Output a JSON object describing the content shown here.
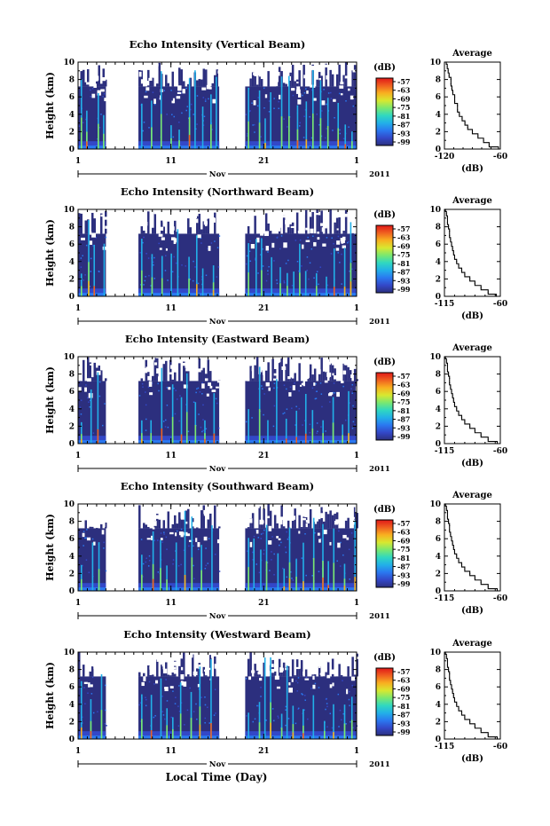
{
  "figure": {
    "time_axis_label": "Local Time (Day)",
    "month_label": "Nov",
    "year_label": "2011"
  },
  "colormap": {
    "colors": [
      "#2c2f7e",
      "#3348c8",
      "#2a78f0",
      "#22b0e8",
      "#30d8c0",
      "#7ae870",
      "#d8e830",
      "#f8b020",
      "#f06020",
      "#e01818"
    ]
  },
  "chart_data": [
    {
      "type": "heatmap",
      "title": "Echo Intensity (Vertical Beam)",
      "ylabel": "Height (km)",
      "y_ticks": [
        "0",
        "2",
        "4",
        "6",
        "8",
        "10"
      ],
      "ylim": [
        0,
        10
      ],
      "x_ticks": [
        "1",
        "11",
        "21",
        "1"
      ],
      "xlim": [
        1,
        31
      ],
      "month": "Nov",
      "year": "2011",
      "colorbar": {
        "unit": "(dB)",
        "ticks": [
          "-57",
          "-63",
          "-69",
          "-75",
          "-81",
          "-87",
          "-93",
          "-99"
        ]
      },
      "data_gaps_days": [
        [
          4.0,
          7.5
        ],
        [
          16.2,
          19.0
        ]
      ],
      "profile": {
        "title": "Average",
        "xlabel": "(dB)",
        "x_ticks": [
          "-120",
          "-60"
        ],
        "xlim": [
          -120,
          -60
        ],
        "y_ticks": [
          "0",
          "2",
          "4",
          "6",
          "8",
          "10"
        ],
        "ylim": [
          0,
          10
        ],
        "height_km": [
          0.0,
          0.5,
          1.0,
          1.5,
          2.0,
          2.5,
          3.0,
          3.5,
          4.0,
          4.5,
          5.0,
          5.5,
          6.0,
          6.5,
          7.0,
          7.5,
          8.0,
          8.5,
          9.0,
          9.5,
          10.0
        ],
        "db": [
          -62,
          -72,
          -78,
          -84,
          -90,
          -95,
          -98,
          -101,
          -104,
          -106,
          -106,
          -109,
          -109,
          -111,
          -112,
          -113,
          -113,
          -115,
          -116,
          -117,
          -118
        ]
      }
    },
    {
      "type": "heatmap",
      "title": "Echo Intensity (Northward Beam)",
      "ylabel": "Height (km)",
      "y_ticks": [
        "0",
        "2",
        "4",
        "6",
        "8",
        "10"
      ],
      "ylim": [
        0,
        10
      ],
      "x_ticks": [
        "1",
        "11",
        "21",
        "1"
      ],
      "xlim": [
        1,
        31
      ],
      "month": "Nov",
      "year": "2011",
      "colorbar": {
        "unit": "(dB)",
        "ticks": [
          "-57",
          "-63",
          "-69",
          "-75",
          "-81",
          "-87",
          "-93",
          "-99"
        ]
      },
      "data_gaps_days": [
        [
          4.0,
          7.5
        ],
        [
          16.2,
          19.0
        ]
      ],
      "profile": {
        "title": "Average",
        "xlabel": "(dB)",
        "x_ticks": [
          "-115",
          "-60"
        ],
        "xlim": [
          -115,
          -60
        ],
        "y_ticks": [
          "0",
          "2",
          "4",
          "6",
          "8",
          "10"
        ],
        "ylim": [
          0,
          10
        ],
        "height_km": [
          0.0,
          0.5,
          1.0,
          1.5,
          2.0,
          2.5,
          3.0,
          3.5,
          4.0,
          4.5,
          5.0,
          5.5,
          6.0,
          6.5,
          7.0,
          7.5,
          8.0,
          8.5,
          9.0,
          9.5,
          10.0
        ],
        "db": [
          -64,
          -72,
          -79,
          -85,
          -90,
          -95,
          -98,
          -101,
          -103,
          -105,
          -106,
          -107,
          -108,
          -109,
          -110,
          -110,
          -111,
          -112,
          -112,
          -113,
          -114
        ]
      }
    },
    {
      "type": "heatmap",
      "title": "Echo Intensity (Eastward Beam)",
      "ylabel": "Height (km)",
      "y_ticks": [
        "0",
        "2",
        "4",
        "6",
        "8",
        "10"
      ],
      "ylim": [
        0,
        10
      ],
      "x_ticks": [
        "1",
        "11",
        "21",
        "1"
      ],
      "xlim": [
        1,
        31
      ],
      "month": "Nov",
      "year": "2011",
      "colorbar": {
        "unit": "(dB)",
        "ticks": [
          "-57",
          "-63",
          "-69",
          "-75",
          "-81",
          "-87",
          "-93",
          "-99"
        ]
      },
      "data_gaps_days": [
        [
          4.0,
          7.5
        ],
        [
          16.2,
          19.0
        ]
      ],
      "profile": {
        "title": "Average",
        "xlabel": "(dB)",
        "x_ticks": [
          "-115",
          "-60"
        ],
        "xlim": [
          -115,
          -60
        ],
        "y_ticks": [
          "0",
          "2",
          "4",
          "6",
          "8",
          "10"
        ],
        "ylim": [
          0,
          10
        ],
        "height_km": [
          0.0,
          0.5,
          1.0,
          1.5,
          2.0,
          2.5,
          3.0,
          3.5,
          4.0,
          4.5,
          5.0,
          5.5,
          6.0,
          6.5,
          7.0,
          7.5,
          8.0,
          8.5,
          9.0,
          9.5,
          10.0
        ],
        "db": [
          -63,
          -72,
          -79,
          -85,
          -90,
          -95,
          -98,
          -101,
          -103,
          -105,
          -106,
          -107,
          -108,
          -109,
          -110,
          -110,
          -111,
          -112,
          -112,
          -113,
          -114
        ]
      }
    },
    {
      "type": "heatmap",
      "title": "Echo Intensity (Southward Beam)",
      "ylabel": "Height (km)",
      "y_ticks": [
        "0",
        "2",
        "4",
        "6",
        "8",
        "10"
      ],
      "ylim": [
        0,
        10
      ],
      "x_ticks": [
        "1",
        "11",
        "21",
        "1"
      ],
      "xlim": [
        1,
        31
      ],
      "month": "Nov",
      "year": "2011",
      "colorbar": {
        "unit": "(dB)",
        "ticks": [
          "-57",
          "-63",
          "-69",
          "-75",
          "-81",
          "-87",
          "-93",
          "-99"
        ]
      },
      "data_gaps_days": [
        [
          4.0,
          7.5
        ],
        [
          16.2,
          19.0
        ]
      ],
      "profile": {
        "title": "Average",
        "xlabel": "(dB)",
        "x_ticks": [
          "-115",
          "-60"
        ],
        "xlim": [
          -115,
          -60
        ],
        "y_ticks": [
          "0",
          "2",
          "4",
          "6",
          "8",
          "10"
        ],
        "ylim": [
          0,
          10
        ],
        "height_km": [
          0.0,
          0.5,
          1.0,
          1.5,
          2.0,
          2.5,
          3.0,
          3.5,
          4.0,
          4.5,
          5.0,
          5.5,
          6.0,
          6.5,
          7.0,
          7.5,
          8.0,
          8.5,
          9.0,
          9.5,
          10.0
        ],
        "db": [
          -63,
          -72,
          -79,
          -85,
          -90,
          -95,
          -98,
          -101,
          -103,
          -105,
          -106,
          -107,
          -108,
          -109,
          -110,
          -110,
          -111,
          -112,
          -112,
          -113,
          -114
        ]
      }
    },
    {
      "type": "heatmap",
      "title": "Echo Intensity (Westward Beam)",
      "ylabel": "Height (km)",
      "y_ticks": [
        "0",
        "2",
        "4",
        "6",
        "8",
        "10"
      ],
      "ylim": [
        0,
        10
      ],
      "x_ticks": [
        "1",
        "11",
        "21",
        "1"
      ],
      "xlim": [
        1,
        31
      ],
      "month": "Nov",
      "year": "2011",
      "colorbar": {
        "unit": "(dB)",
        "ticks": [
          "-57",
          "-63",
          "-69",
          "-75",
          "-81",
          "-87",
          "-93",
          "-99"
        ]
      },
      "data_gaps_days": [
        [
          4.0,
          7.5
        ],
        [
          16.2,
          19.0
        ]
      ],
      "profile": {
        "title": "Average",
        "xlabel": "(dB)",
        "x_ticks": [
          "-115",
          "-60"
        ],
        "xlim": [
          -115,
          -60
        ],
        "y_ticks": [
          "0",
          "2",
          "4",
          "6",
          "8",
          "10"
        ],
        "ylim": [
          0,
          10
        ],
        "height_km": [
          0.0,
          0.5,
          1.0,
          1.5,
          2.0,
          2.5,
          3.0,
          3.5,
          4.0,
          4.5,
          5.0,
          5.5,
          6.0,
          6.5,
          7.0,
          7.5,
          8.0,
          8.5,
          9.0,
          9.5,
          10.0
        ],
        "db": [
          -63,
          -72,
          -79,
          -85,
          -90,
          -95,
          -98,
          -101,
          -103,
          -105,
          -106,
          -107,
          -108,
          -109,
          -110,
          -110,
          -111,
          -112,
          -112,
          -113,
          -114
        ]
      }
    }
  ]
}
